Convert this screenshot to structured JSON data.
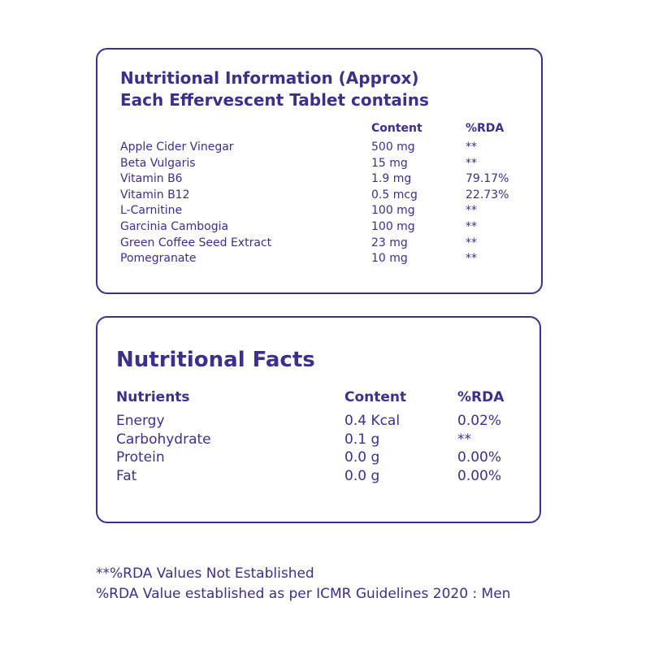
{
  "info": {
    "title_line1": "Nutritional Information (Approx)",
    "title_line2": "Each Effervescent Tablet contains",
    "headers": {
      "content": "Content",
      "rda": "%RDA"
    },
    "rows": [
      {
        "name": "Apple Cider Vinegar",
        "content": "500 mg",
        "rda": "**"
      },
      {
        "name": "Beta Vulgaris",
        "content": "15 mg",
        "rda": "**"
      },
      {
        "name": "Vitamin B6",
        "content": "1.9 mg",
        "rda": "79.17%"
      },
      {
        "name": "Vitamin B12",
        "content": "0.5 mcg",
        "rda": "22.73%"
      },
      {
        "name": "L-Carnitine",
        "content": "100 mg",
        "rda": "**"
      },
      {
        "name": "Garcinia Cambogia",
        "content": "100 mg",
        "rda": "**"
      },
      {
        "name": "Green Coffee Seed Extract",
        "content": "23 mg",
        "rda": "**"
      },
      {
        "name": "Pomegranate",
        "content": "10 mg",
        "rda": "**"
      }
    ]
  },
  "facts": {
    "title": "Nutritional Facts",
    "headers": {
      "nutrients": "Nutrients",
      "content": "Content",
      "rda": "%RDA"
    },
    "rows": [
      {
        "name": "Energy",
        "content": "0.4 Kcal",
        "rda": "0.02%"
      },
      {
        "name": "Carbohydrate",
        "content": "0.1 g",
        "rda": "**"
      },
      {
        "name": "Protein",
        "content": "0.0 g",
        "rda": "0.00%"
      },
      {
        "name": "Fat",
        "content": "0.0 g",
        "rda": "0.00%"
      }
    ]
  },
  "notes": {
    "line1": "**%RDA Values Not Established",
    "line2": "%RDA Value established as per ICMR Guidelines 2020 : Men"
  }
}
